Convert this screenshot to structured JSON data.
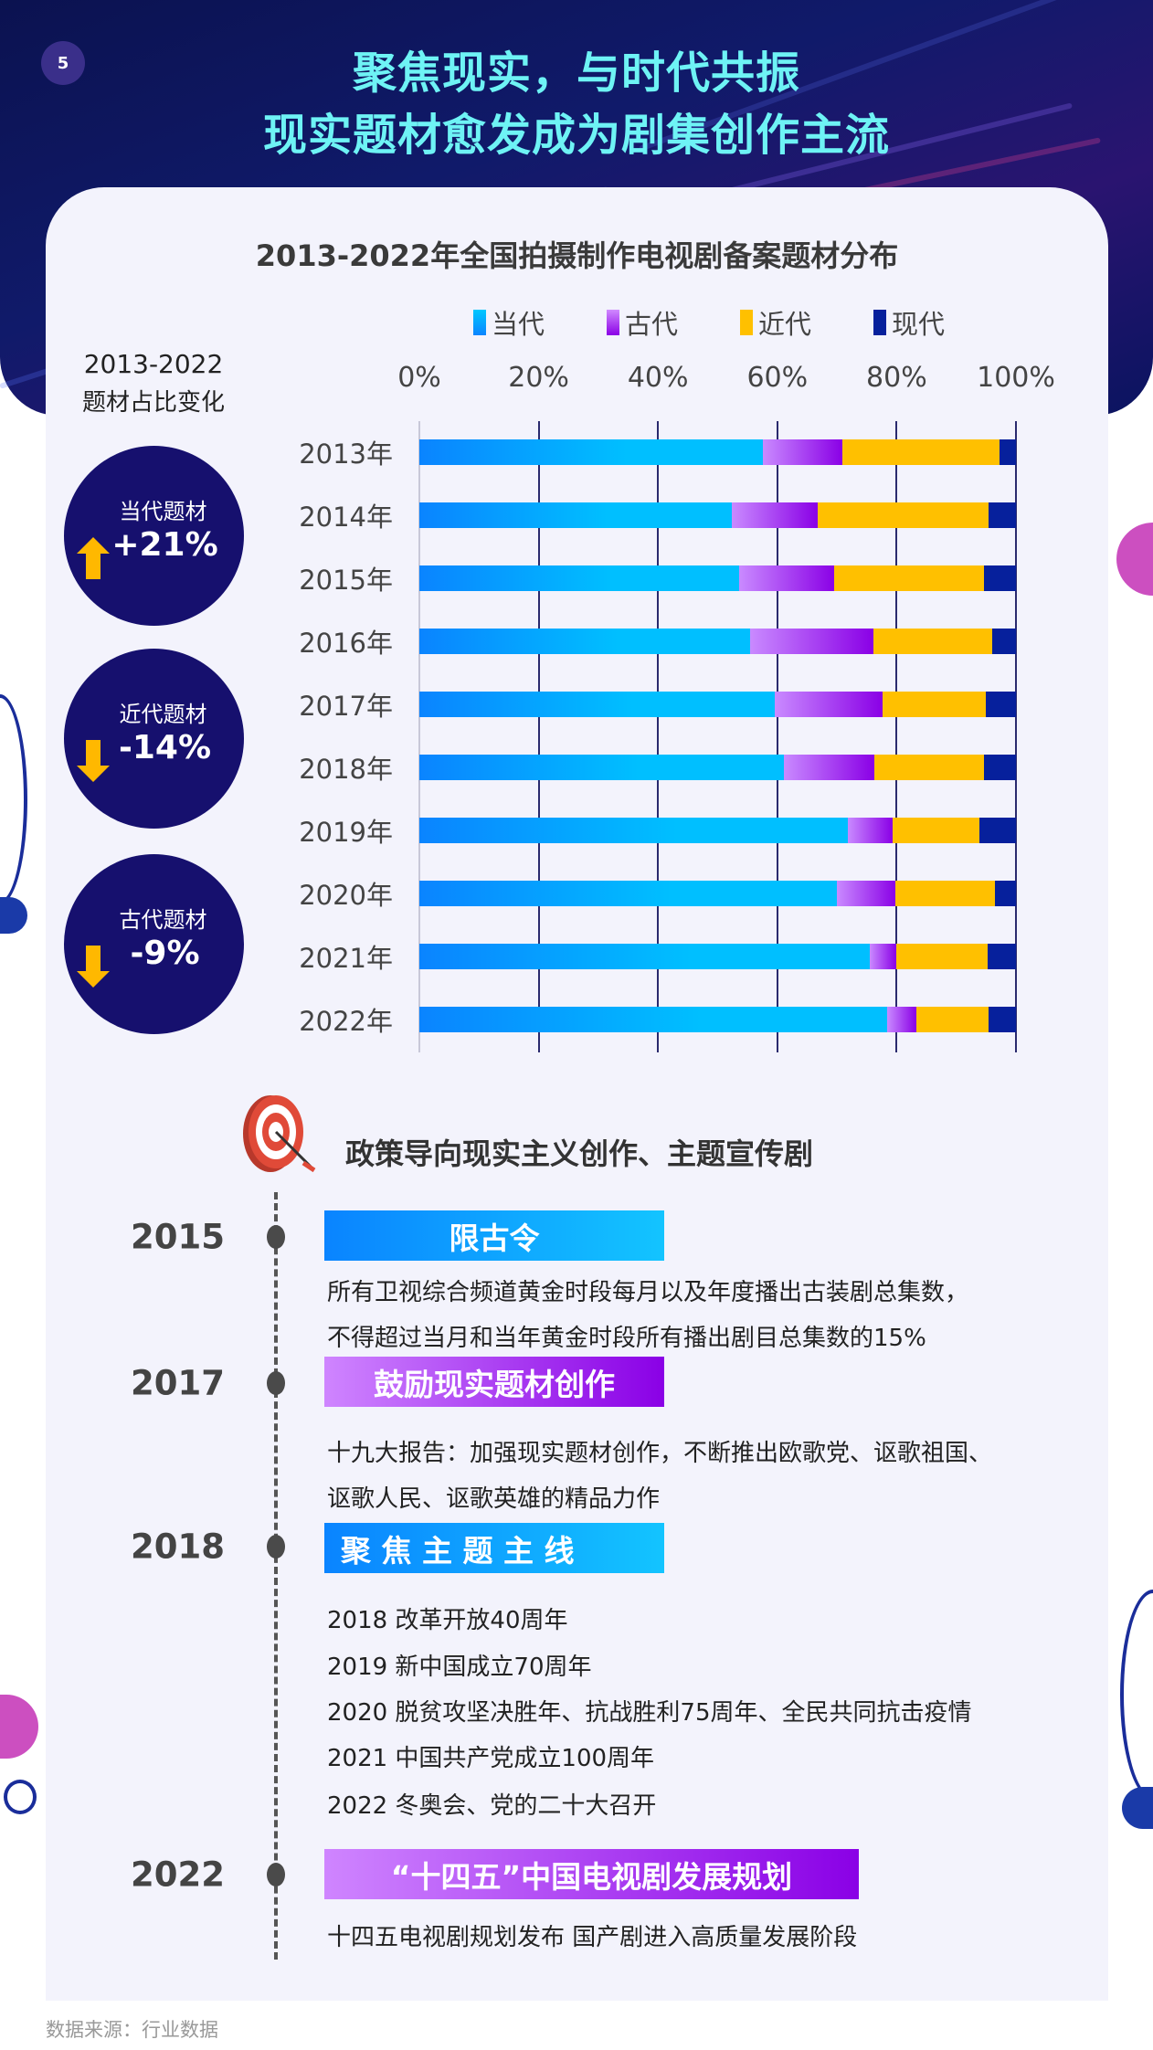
{
  "page_number": "5",
  "header": {
    "title_line1": "聚焦现实，与时代共振",
    "title_line2": "现实题材愈发成为剧集创作主流"
  },
  "left_panel": {
    "heading_line1": "2013-2022",
    "heading_line2": "题材占比变化",
    "badges": [
      {
        "label": "当代题材",
        "value": "+21%",
        "direction": "up"
      },
      {
        "label": "近代题材",
        "value": "-14%",
        "direction": "down"
      },
      {
        "label": "古代题材",
        "value": "-9%",
        "direction": "down"
      }
    ]
  },
  "chart_data": {
    "type": "bar",
    "orientation": "horizontal",
    "stacked": true,
    "title": "2013-2022年全国拍摄制作电视剧备案题材分布",
    "categories": [
      "2013年",
      "2014年",
      "2015年",
      "2016年",
      "2017年",
      "2018年",
      "2019年",
      "2020年",
      "2021年",
      "2022年"
    ],
    "x_ticks": [
      "0%",
      "20%",
      "40%",
      "60%",
      "80%",
      "100%"
    ],
    "xlim": [
      0,
      100
    ],
    "grid": true,
    "legend_position": "top",
    "series": [
      {
        "name": "当代",
        "color": "#00b4ff",
        "values": [
          57.6,
          52.3,
          53.6,
          55.4,
          59.5,
          61.1,
          71.8,
          70.0,
          75.5,
          78.4
        ]
      },
      {
        "name": "古代",
        "color": "#a64dff",
        "values": [
          13.3,
          14.4,
          16.0,
          20.7,
          18.1,
          15.1,
          7.5,
          9.8,
          4.4,
          4.9
        ]
      },
      {
        "name": "近代",
        "color": "#ffc000",
        "values": [
          26.3,
          28.7,
          25.1,
          19.9,
          17.3,
          18.5,
          14.6,
          16.7,
          15.4,
          12.1
        ]
      },
      {
        "name": "现代",
        "color": "#06209c",
        "values": [
          2.8,
          4.6,
          5.3,
          4.0,
          5.1,
          5.3,
          6.1,
          3.5,
          4.7,
          4.6
        ]
      }
    ]
  },
  "policy": {
    "title": "政策导向现实主义创作、主题宣传剧",
    "events": [
      {
        "year": "2015",
        "label": "限古令",
        "lines": [
          "所有卫视综合频道黄金时段每月以及年度播出古装剧总集数，",
          "不得超过当月和当年黄金时段所有播出剧目总集数的15%"
        ]
      },
      {
        "year": "2017",
        "label": "鼓励现实题材创作",
        "lines": [
          "十九大报告：加强现实题材创作，不断推出欧歌党、讴歌祖国、",
          "讴歌人民、讴歌英雄的精品力作"
        ]
      },
      {
        "year": "2018",
        "label": "聚 焦 主 题 主 线",
        "lines": [
          "2018 改革开放40周年",
          "2019 新中国成立70周年",
          "2020 脱贫攻坚决胜年、抗战胜利75周年、全民共同抗击疫情",
          "2021 中国共产党成立100周年",
          "2022 冬奥会、党的二十大召开"
        ]
      },
      {
        "year": "2022",
        "label": "“十四五”中国电视剧发展规划",
        "lines": [
          "十四五电视剧规划发布 国产剧进入高质量发展阶段"
        ]
      }
    ]
  },
  "footer": {
    "source": "数据来源：行业数据"
  }
}
